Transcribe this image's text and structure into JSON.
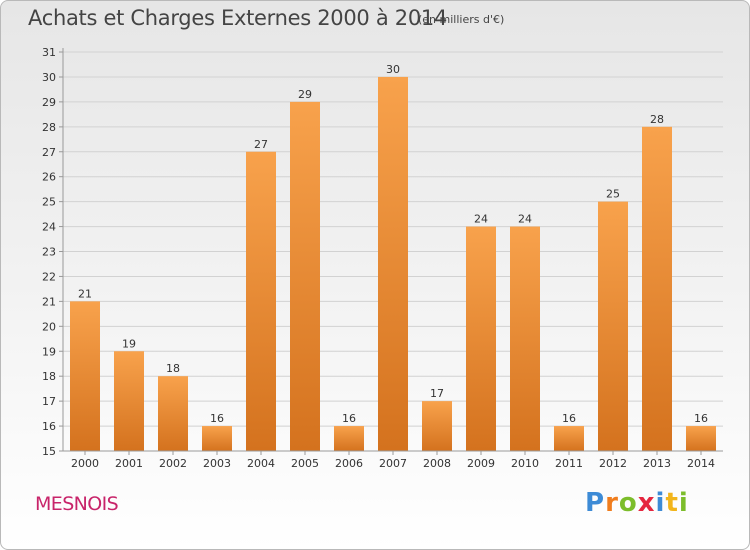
{
  "header": {
    "title": "Achats et Charges Externes 2000 à 2014",
    "subtitle": "(en milliers d'€)"
  },
  "footer": {
    "commune": "MESNOIS",
    "brand": "Proxiti",
    "brand_letters": [
      {
        "char": "P",
        "color": "#3d8bd6"
      },
      {
        "char": "r",
        "color": "#f07d1d"
      },
      {
        "char": "o",
        "color": "#7cbd2b"
      },
      {
        "char": "x",
        "color": "#e5263f"
      },
      {
        "char": "i",
        "color": "#3d8bd6"
      },
      {
        "char": "t",
        "color": "#f2b51b"
      },
      {
        "char": "i",
        "color": "#7cbd2b"
      }
    ]
  },
  "colors": {
    "bar_light": "#f8a24c",
    "bar_dark": "#d4721e",
    "axis": "#999999",
    "grid": "#d2d2d2",
    "text": "#333333",
    "commune": "#c8246a"
  },
  "chart_data": {
    "type": "bar",
    "title": "Achats et Charges Externes 2000 à 2014",
    "subtitle": "(en milliers d'€)",
    "categories": [
      "2000",
      "2001",
      "2002",
      "2003",
      "2004",
      "2005",
      "2006",
      "2007",
      "2008",
      "2009",
      "2010",
      "2011",
      "2012",
      "2013",
      "2014"
    ],
    "values": [
      21,
      19,
      18,
      16,
      27,
      29,
      16,
      30,
      17,
      24,
      24,
      16,
      25,
      28,
      16
    ],
    "ylim": [
      15,
      31
    ],
    "yticks": [
      15,
      16,
      17,
      18,
      19,
      20,
      21,
      22,
      23,
      24,
      25,
      26,
      27,
      28,
      29,
      30,
      31
    ],
    "grid": true,
    "data_labels": true
  }
}
